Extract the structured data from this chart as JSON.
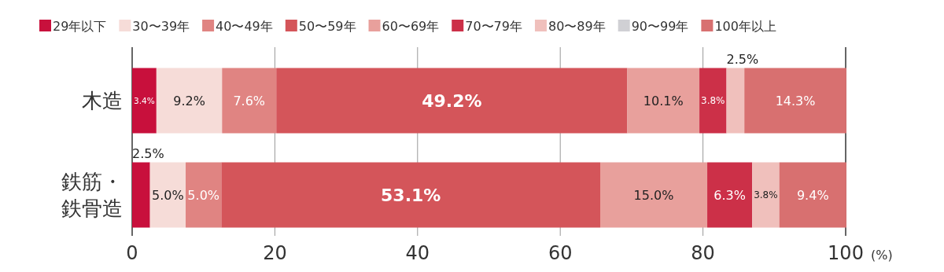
{
  "chart_data": {
    "type": "bar",
    "orientation": "horizontal",
    "stacked": true,
    "categories": [
      "木造",
      "鉄筋・鉄骨造"
    ],
    "series": [
      {
        "name": "29年以下",
        "color": "#c8103c",
        "values": [
          3.4,
          2.5
        ],
        "value_labels": [
          "3.4%",
          "2.5%"
        ]
      },
      {
        "name": "30〜39年",
        "color": "#f6dcd8",
        "values": [
          9.2,
          5.0
        ],
        "value_labels": [
          "9.2%",
          "5.0%"
        ]
      },
      {
        "name": "40〜49年",
        "color": "#e08482",
        "values": [
          7.6,
          5.0
        ],
        "value_labels": [
          "7.6%",
          "5.0%"
        ]
      },
      {
        "name": "50〜59年",
        "color": "#d4555a",
        "values": [
          49.2,
          53.1
        ],
        "value_labels": [
          "49.2%",
          "53.1%"
        ]
      },
      {
        "name": "60〜69年",
        "color": "#e8a09c",
        "values": [
          10.1,
          15.0
        ],
        "value_labels": [
          "10.1%",
          "15.0%"
        ]
      },
      {
        "name": "70〜79年",
        "color": "#cc3048",
        "values": [
          3.8,
          6.3
        ],
        "value_labels": [
          "3.8%",
          "6.3%"
        ]
      },
      {
        "name": "80〜89年",
        "color": "#f0c0bc",
        "values": [
          2.5,
          3.8
        ],
        "value_labels": [
          "2.5%",
          "3.8%"
        ]
      },
      {
        "name": "90〜99年",
        "color": "#d0d0d4",
        "values": [
          0,
          0
        ],
        "value_labels": [
          null,
          null
        ]
      },
      {
        "name": "100年以上",
        "color": "#d87070",
        "values": [
          14.3,
          9.4
        ],
        "value_labels": [
          "14.3%",
          "9.4%"
        ]
      }
    ],
    "xlim": [
      0,
      100
    ],
    "xticks": [
      0,
      20,
      40,
      60,
      80,
      100
    ],
    "xlabel": "(%)",
    "grid": "x",
    "legend": "top left"
  }
}
